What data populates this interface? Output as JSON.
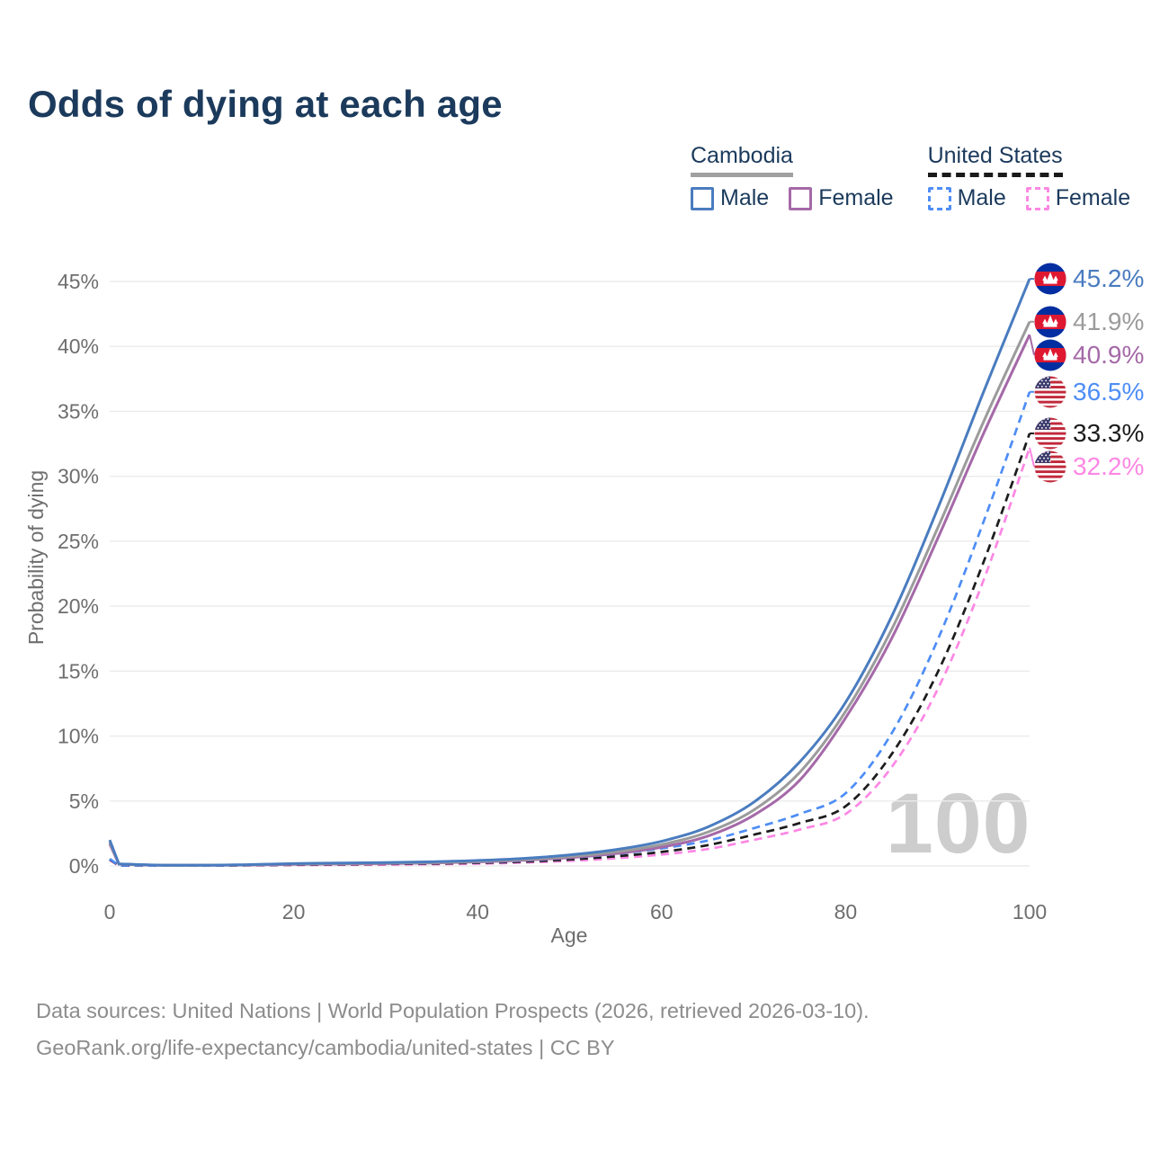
{
  "title": "Odds of dying at each age",
  "legend": {
    "groups": [
      {
        "name": "Cambodia",
        "underline_color": "#a0a0a0",
        "underline_style": "solid",
        "items": [
          {
            "label": "Male",
            "color": "#4a7cbf",
            "style": "solid"
          },
          {
            "label": "Female",
            "color": "#a569a8",
            "style": "solid"
          }
        ]
      },
      {
        "name": "United States",
        "underline_color": "#1a1a1a",
        "underline_style": "dashed",
        "items": [
          {
            "label": "Male",
            "color": "#4e8df6",
            "style": "dashed"
          },
          {
            "label": "Female",
            "color": "#fd87e4",
            "style": "dashed"
          }
        ]
      }
    ]
  },
  "chart_data": {
    "type": "line",
    "title": "Odds of dying at each age",
    "xlabel": "Age",
    "ylabel": "Probability of dying",
    "xlim": [
      0,
      100
    ],
    "ylim": [
      0,
      45
    ],
    "x_ticks": [
      0,
      20,
      40,
      60,
      80,
      100
    ],
    "y_ticks": [
      0,
      5,
      10,
      15,
      20,
      25,
      30,
      35,
      40,
      45
    ],
    "y_tick_suffix": "%",
    "grid": true,
    "legend_position": "top-right",
    "watermark": "100",
    "ages": [
      0,
      1,
      5,
      10,
      15,
      20,
      25,
      30,
      35,
      40,
      45,
      50,
      55,
      60,
      65,
      70,
      75,
      80,
      85,
      90,
      95,
      100
    ],
    "series": [
      {
        "id": "cambodia-male",
        "name": "Cambodia Male",
        "country": "Cambodia",
        "color": "#4a7cbf",
        "style": "solid",
        "flag": "kh",
        "end_label": "45.2%",
        "values": [
          2.0,
          0.16,
          0.07,
          0.06,
          0.1,
          0.18,
          0.22,
          0.26,
          0.32,
          0.42,
          0.58,
          0.85,
          1.25,
          1.9,
          3.0,
          4.9,
          8.0,
          12.6,
          19.2,
          27.5,
          36.5,
          45.2
        ]
      },
      {
        "id": "cambodia",
        "name": "Cambodia",
        "country": "Cambodia",
        "color": "#9b9b9b",
        "style": "solid",
        "flag": "kh",
        "end_label": "41.9%",
        "values": [
          1.85,
          0.15,
          0.06,
          0.05,
          0.09,
          0.15,
          0.19,
          0.22,
          0.27,
          0.36,
          0.5,
          0.73,
          1.08,
          1.65,
          2.6,
          4.3,
          7.2,
          11.9,
          18.2,
          26.0,
          34.2,
          41.9
        ]
      },
      {
        "id": "cambodia-female",
        "name": "Cambodia Female",
        "country": "Cambodia",
        "color": "#a569a8",
        "style": "solid",
        "flag": "kh",
        "end_label": "40.9%",
        "values": [
          1.7,
          0.14,
          0.06,
          0.05,
          0.07,
          0.12,
          0.15,
          0.18,
          0.23,
          0.31,
          0.44,
          0.64,
          0.95,
          1.45,
          2.3,
          3.9,
          6.6,
          11.4,
          17.5,
          25.2,
          33.3,
          40.9
        ]
      },
      {
        "id": "united-states-male",
        "name": "United States Male",
        "country": "United States",
        "color": "#4e8df6",
        "style": "dashed",
        "flag": "us",
        "end_label": "36.5%",
        "values": [
          0.55,
          0.04,
          0.02,
          0.02,
          0.07,
          0.13,
          0.16,
          0.19,
          0.23,
          0.29,
          0.41,
          0.62,
          0.92,
          1.35,
          1.95,
          2.9,
          4.0,
          5.6,
          10.2,
          17.4,
          26.5,
          36.5
        ]
      },
      {
        "id": "united-states",
        "name": "United States",
        "country": "United States",
        "color": "#1c1c1c",
        "style": "dashed",
        "flag": "us",
        "end_label": "33.3%",
        "values": [
          0.5,
          0.035,
          0.018,
          0.018,
          0.05,
          0.09,
          0.12,
          0.15,
          0.18,
          0.24,
          0.33,
          0.5,
          0.74,
          1.08,
          1.6,
          2.4,
          3.3,
          4.6,
          8.6,
          14.9,
          23.4,
          33.3
        ]
      },
      {
        "id": "united-states-female",
        "name": "United States Female",
        "country": "United States",
        "color": "#fd87e4",
        "style": "dashed",
        "flag": "us",
        "end_label": "32.2%",
        "values": [
          0.45,
          0.03,
          0.015,
          0.015,
          0.04,
          0.06,
          0.08,
          0.1,
          0.13,
          0.18,
          0.26,
          0.39,
          0.59,
          0.88,
          1.3,
          2.0,
          2.8,
          4.0,
          7.6,
          13.6,
          22.0,
          32.2
        ]
      }
    ]
  },
  "footer": {
    "line1": "Data sources: United Nations | World Population Prospects (2026, retrieved 2026-03-10).",
    "line2": "GeoRank.org/life-expectancy/cambodia/united-states | CC BY"
  }
}
